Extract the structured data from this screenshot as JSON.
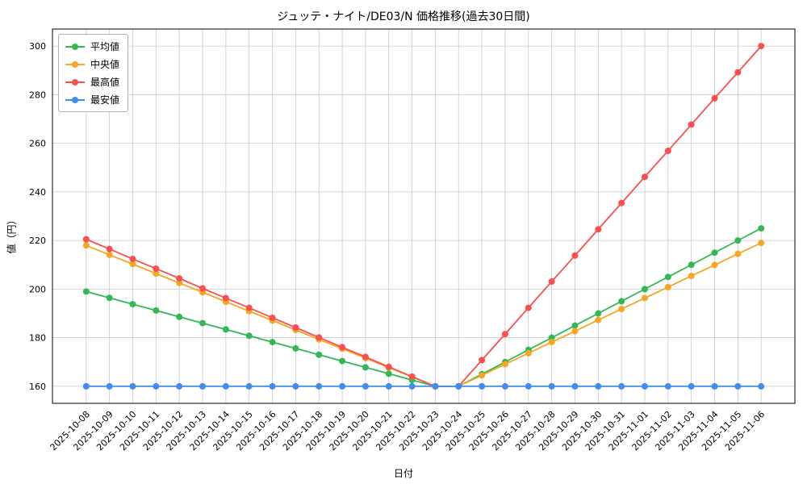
{
  "chart_data": {
    "type": "line",
    "title": "ジュッテ・ナイト/DE03/N 価格推移(過去30日間)",
    "xlabel": "日付",
    "ylabel": "値（円）",
    "grid": true,
    "legend_position": "upper-left",
    "ylim": [
      153,
      307
    ],
    "yticks": [
      160,
      180,
      200,
      220,
      240,
      260,
      280,
      300
    ],
    "x": [
      "2025-10-08",
      "2025-10-09",
      "2025-10-10",
      "2025-10-11",
      "2025-10-12",
      "2025-10-13",
      "2025-10-14",
      "2025-10-15",
      "2025-10-16",
      "2025-10-17",
      "2025-10-18",
      "2025-10-19",
      "2025-10-20",
      "2025-10-21",
      "2025-10-22",
      "2025-10-23",
      "2025-10-24",
      "2025-10-25",
      "2025-10-26",
      "2025-10-27",
      "2025-10-28",
      "2025-10-29",
      "2025-10-30",
      "2025-10-31",
      "2025-11-01",
      "2025-11-02",
      "2025-11-03",
      "2025-11-04",
      "2025-11-05",
      "2025-11-06"
    ],
    "series": [
      {
        "name": "平均値",
        "color": "#33b855",
        "values": [
          199,
          196.4,
          193.8,
          191.2,
          188.6,
          186,
          183.4,
          180.8,
          178.2,
          175.6,
          173,
          170.4,
          167.8,
          165.2,
          162.6,
          160,
          160,
          165,
          170,
          175,
          180,
          185,
          190,
          195,
          200,
          205,
          210,
          215,
          220,
          225
        ]
      },
      {
        "name": "中央値",
        "color": "#f5a623",
        "values": [
          218,
          214.1,
          210.3,
          206.4,
          202.5,
          198.7,
          194.8,
          190.9,
          187.1,
          183.2,
          179.3,
          175.5,
          171.6,
          167.7,
          163.9,
          160,
          160,
          164.5,
          169.1,
          173.6,
          178.2,
          182.7,
          187.3,
          191.8,
          196.3,
          200.8,
          205.4,
          209.9,
          214.5,
          219
        ]
      },
      {
        "name": "最高値",
        "color": "#f94f4f",
        "values": [
          220.5,
          216.5,
          212.4,
          208.4,
          204.4,
          200.3,
          196.3,
          192.3,
          188.2,
          184.2,
          180.1,
          176.1,
          172.1,
          168,
          164,
          160,
          160,
          170.8,
          181.5,
          192.3,
          203.1,
          213.8,
          224.6,
          235.4,
          246.2,
          256.9,
          267.7,
          278.5,
          289.2,
          300
        ]
      },
      {
        "name": "最安値",
        "color": "#3d8ef0",
        "values": [
          160,
          160,
          160,
          160,
          160,
          160,
          160,
          160,
          160,
          160,
          160,
          160,
          160,
          160,
          160,
          160,
          160,
          160,
          160,
          160,
          160,
          160,
          160,
          160,
          160,
          160,
          160,
          160,
          160,
          160
        ]
      }
    ]
  }
}
